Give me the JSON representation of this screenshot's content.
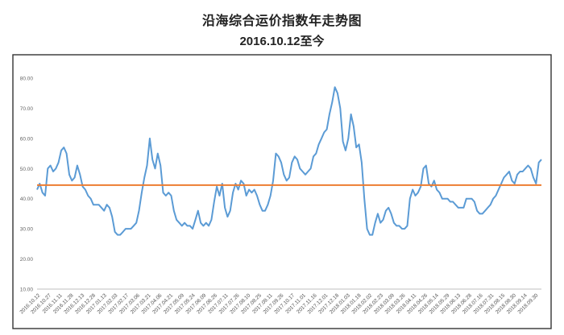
{
  "chart_data": {
    "type": "line",
    "title": "沿海综合运价指数年走势图",
    "subtitle": "2016.10.12至今",
    "xlabel": "",
    "ylabel": "",
    "ylim": [
      10,
      80
    ],
    "yticks": [
      "10.00",
      "20.00",
      "30.00",
      "40.00",
      "50.00",
      "60.00",
      "70.00",
      "80.00"
    ],
    "grid": false,
    "x_tick_labels": [
      "2016.10.12",
      "2016.10.27",
      "2016.11.11",
      "2016.11.28",
      "2016.12.13",
      "2016.12.28",
      "2017.01.13",
      "2017.02.03",
      "2017.02.17",
      "2017.03.06",
      "2017.03.21",
      "2017.04.06",
      "2017.04.21",
      "2017.05.09",
      "2017.05.24",
      "2017.06.09",
      "2017.06.26",
      "2017.07.11",
      "2017.07.26",
      "2017.08.10",
      "2017.08.25",
      "2017.09.11",
      "2017.09.26",
      "2017.10.17",
      "2017.11.01",
      "2017.11.16",
      "2017.12.01",
      "2017.12.18",
      "2018.01.03",
      "2018.01.18",
      "2018.02.02",
      "2018.02.23",
      "2018.03.09",
      "2018.03.26",
      "2018.04.11",
      "2018.04.26",
      "2018.05.14",
      "2018.05.29",
      "2018.06.13",
      "2018.06.28",
      "2018.07.16",
      "2018.07.31",
      "2018.08.15",
      "2018.08.30",
      "2018.09.14",
      "2018.09.30"
    ],
    "series": [
      {
        "color": "#5b9bd5",
        "values": [
          43,
          45,
          42,
          41,
          50,
          51,
          49,
          50,
          52,
          56,
          57,
          55,
          48,
          46,
          47,
          51,
          48,
          44,
          43,
          41,
          40,
          38,
          38,
          38,
          37,
          36,
          38,
          37,
          34,
          29,
          28,
          28,
          29,
          30,
          30,
          30,
          31,
          32,
          36,
          42,
          47,
          51,
          60,
          53,
          50,
          55,
          51,
          42,
          41,
          42,
          41,
          36,
          33,
          32,
          31,
          32,
          31,
          31,
          30,
          33,
          36,
          32,
          31,
          32,
          31,
          33,
          39,
          44,
          41,
          45,
          37,
          34,
          36,
          42,
          45,
          43,
          46,
          45,
          41,
          43,
          42,
          43,
          41,
          38,
          36,
          36,
          38,
          41,
          46,
          55,
          54,
          52,
          48,
          46,
          47,
          52,
          54,
          53,
          50,
          49,
          48,
          49,
          50,
          54,
          55,
          58,
          60,
          62,
          63,
          68,
          72,
          77,
          75,
          70,
          59,
          56,
          60,
          68,
          64,
          57,
          58,
          52,
          40,
          30,
          28,
          28,
          32,
          35,
          32,
          33,
          36,
          37,
          35,
          32,
          31,
          31,
          30,
          30,
          31,
          40,
          43,
          41,
          42,
          44,
          50,
          51,
          45,
          44,
          46,
          43,
          42,
          40,
          40,
          40,
          39,
          39,
          38,
          37,
          37,
          37,
          40,
          40,
          40,
          39,
          36,
          35,
          35,
          36,
          37,
          38,
          40,
          41,
          43,
          45,
          47,
          48,
          49,
          46,
          45,
          48,
          49,
          49,
          50,
          51,
          50,
          47,
          45,
          52,
          53
        ]
      },
      {
        "color": "#ed7d31",
        "values": [
          44.5,
          44.5
        ]
      }
    ]
  }
}
